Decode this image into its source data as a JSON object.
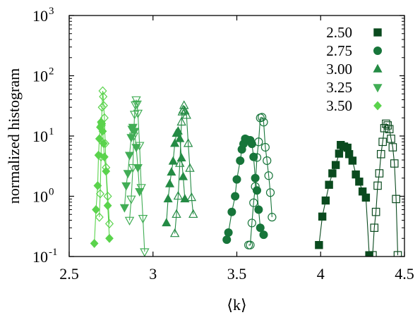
{
  "chart_data": {
    "type": "scatter",
    "title": "",
    "xlabel": "⟨k⟩",
    "ylabel": "normalized histogram",
    "xlim": [
      2.5,
      4.5
    ],
    "ylim": [
      0.1,
      1000
    ],
    "yscale": "log",
    "grid": false,
    "legend_placement": "top-right",
    "x_ticks": [
      {
        "value": 2.5,
        "label": "2.5"
      },
      {
        "value": 3.0,
        "label": "3"
      },
      {
        "value": 3.5,
        "label": "3.5"
      },
      {
        "value": 4.0,
        "label": "4"
      },
      {
        "value": 4.5,
        "label": "4.5"
      }
    ],
    "y_ticks": [
      {
        "value": 0.1,
        "base": "10",
        "exp": "-1"
      },
      {
        "value": 1,
        "base": "10",
        "exp": "0"
      },
      {
        "value": 10,
        "base": "10",
        "exp": "1"
      },
      {
        "value": 100,
        "base": "10",
        "exp": "2"
      },
      {
        "value": 1000,
        "base": "10",
        "exp": "3"
      }
    ],
    "series": [
      {
        "name": "2.50",
        "marker": "square",
        "color": "#0a4a1e",
        "groups": [
          {
            "filled": true,
            "points": [
              [
                3.99,
                0.155
              ],
              [
                4.01,
                0.46
              ],
              [
                4.03,
                0.85
              ],
              [
                4.05,
                1.55
              ],
              [
                4.07,
                2.4
              ],
              [
                4.09,
                3.3
              ],
              [
                4.11,
                5.1
              ],
              [
                4.12,
                7.1
              ],
              [
                4.14,
                6.7
              ],
              [
                4.16,
                6.4
              ],
              [
                4.17,
                5.0
              ],
              [
                4.19,
                3.9
              ],
              [
                4.21,
                2.3
              ],
              [
                4.23,
                1.75
              ],
              [
                4.25,
                1.2
              ],
              [
                4.27,
                0.95
              ],
              [
                4.29,
                0.105
              ]
            ]
          },
          {
            "filled": false,
            "points": [
              [
                4.31,
                0.105
              ],
              [
                4.32,
                0.3
              ],
              [
                4.33,
                0.55
              ],
              [
                4.34,
                1.5
              ],
              [
                4.35,
                2.4
              ],
              [
                4.36,
                5.0
              ],
              [
                4.37,
                8.0
              ],
              [
                4.38,
                13.5
              ],
              [
                4.39,
                16.0
              ],
              [
                4.4,
                15.0
              ],
              [
                4.41,
                13.0
              ],
              [
                4.42,
                9.0
              ],
              [
                4.43,
                6.5
              ],
              [
                4.44,
                3.5
              ],
              [
                4.45,
                0.9
              ],
              [
                4.46,
                0.105
              ]
            ]
          }
        ]
      },
      {
        "name": "2.75",
        "marker": "circle",
        "color": "#17753a",
        "groups": [
          {
            "filled": true,
            "points": [
              [
                3.44,
                0.19
              ],
              [
                3.45,
                0.25
              ],
              [
                3.47,
                0.55
              ],
              [
                3.49,
                1.0
              ],
              [
                3.5,
                1.9
              ],
              [
                3.52,
                3.9
              ],
              [
                3.53,
                6.0
              ],
              [
                3.54,
                7.4
              ],
              [
                3.55,
                9.0
              ],
              [
                3.56,
                8.7
              ],
              [
                3.58,
                8.5
              ],
              [
                3.59,
                7.4
              ],
              [
                3.6,
                4.5
              ],
              [
                3.61,
                2.0
              ],
              [
                3.62,
                1.25
              ],
              [
                3.63,
                0.6
              ],
              [
                3.64,
                0.3
              ],
              [
                3.66,
                0.23
              ]
            ]
          },
          {
            "filled": false,
            "points": [
              [
                3.57,
                0.155
              ],
              [
                3.58,
                0.155
              ],
              [
                3.59,
                0.36
              ],
              [
                3.6,
                0.78
              ],
              [
                3.61,
                1.45
              ],
              [
                3.62,
                4.4
              ],
              [
                3.63,
                8.0
              ],
              [
                3.64,
                20.0
              ],
              [
                3.65,
                20.5
              ],
              [
                3.66,
                17.0
              ],
              [
                3.67,
                6.5
              ],
              [
                3.68,
                3.9
              ],
              [
                3.69,
                2.2
              ],
              [
                3.7,
                1.15
              ],
              [
                3.71,
                0.45
              ]
            ]
          }
        ]
      },
      {
        "name": "3.00",
        "marker": "triangle-up",
        "color": "#248b44",
        "groups": [
          {
            "filled": true,
            "points": [
              [
                3.08,
                0.36
              ],
              [
                3.09,
                0.9
              ],
              [
                3.1,
                1.6
              ],
              [
                3.11,
                2.5
              ],
              [
                3.12,
                3.8
              ],
              [
                3.13,
                7.5
              ],
              [
                3.14,
                11.0
              ],
              [
                3.15,
                12.0
              ],
              [
                3.16,
                9.0
              ],
              [
                3.17,
                4.3
              ],
              [
                3.18,
                2.1
              ],
              [
                3.19,
                0.9
              ]
            ]
          },
          {
            "filled": false,
            "points": [
              [
                3.13,
                0.24
              ],
              [
                3.14,
                0.5
              ],
              [
                3.15,
                1.0
              ],
              [
                3.16,
                3.5
              ],
              [
                3.17,
                17.0
              ],
              [
                3.175,
                25.0
              ],
              [
                3.18,
                27.0
              ],
              [
                3.185,
                32.0
              ],
              [
                3.19,
                26.0
              ],
              [
                3.2,
                22.0
              ],
              [
                3.21,
                7.5
              ],
              [
                3.22,
                2.9
              ],
              [
                3.23,
                0.95
              ],
              [
                3.24,
                0.5
              ]
            ]
          }
        ]
      },
      {
        "name": "3.25",
        "marker": "triangle-down",
        "color": "#41ad55",
        "groups": [
          {
            "filled": true,
            "points": [
              [
                2.83,
                0.65
              ],
              [
                2.84,
                1.5
              ],
              [
                2.85,
                2.4
              ],
              [
                2.86,
                4.8
              ],
              [
                2.87,
                9.5
              ],
              [
                2.875,
                13.0
              ],
              [
                2.88,
                14.0
              ],
              [
                2.89,
                12.0
              ],
              [
                2.9,
                6.5
              ],
              [
                2.91,
                3.0
              ],
              [
                2.92,
                1.2
              ]
            ]
          },
          {
            "filled": false,
            "points": [
              [
                2.86,
                0.4
              ],
              [
                2.87,
                0.9
              ],
              [
                2.88,
                3.0
              ],
              [
                2.885,
                10.0
              ],
              [
                2.89,
                23.0
              ],
              [
                2.895,
                33.0
              ],
              [
                2.9,
                40.0
              ],
              [
                2.905,
                34.0
              ],
              [
                2.91,
                24.0
              ],
              [
                2.92,
                7.0
              ],
              [
                2.93,
                1.4
              ],
              [
                2.94,
                0.43
              ],
              [
                2.95,
                0.12
              ]
            ]
          }
        ]
      },
      {
        "name": "3.50",
        "marker": "diamond",
        "color": "#5ad34c",
        "groups": [
          {
            "filled": true,
            "points": [
              [
                2.65,
                0.165
              ],
              [
                2.66,
                0.6
              ],
              [
                2.67,
                1.5
              ],
              [
                2.675,
                4.8
              ],
              [
                2.68,
                9.0
              ],
              [
                2.685,
                14.0
              ],
              [
                2.69,
                17.0
              ],
              [
                2.695,
                16.0
              ],
              [
                2.7,
                12.0
              ],
              [
                2.705,
                7.5
              ],
              [
                2.71,
                4.5
              ],
              [
                2.72,
                2.6
              ],
              [
                2.73,
                0.7
              ],
              [
                2.74,
                0.2
              ]
            ]
          },
          {
            "filled": false,
            "points": [
              [
                2.68,
                0.45
              ],
              [
                2.685,
                1.1
              ],
              [
                2.69,
                4.5
              ],
              [
                2.693,
                15.0
              ],
              [
                2.696,
                30.0
              ],
              [
                2.7,
                56.0
              ],
              [
                2.703,
                45.0
              ],
              [
                2.706,
                32.0
              ],
              [
                2.71,
                20.0
              ],
              [
                2.715,
                7.5
              ],
              [
                2.72,
                3.0
              ],
              [
                2.73,
                1.0
              ],
              [
                2.74,
                0.35
              ]
            ]
          }
        ]
      }
    ]
  }
}
